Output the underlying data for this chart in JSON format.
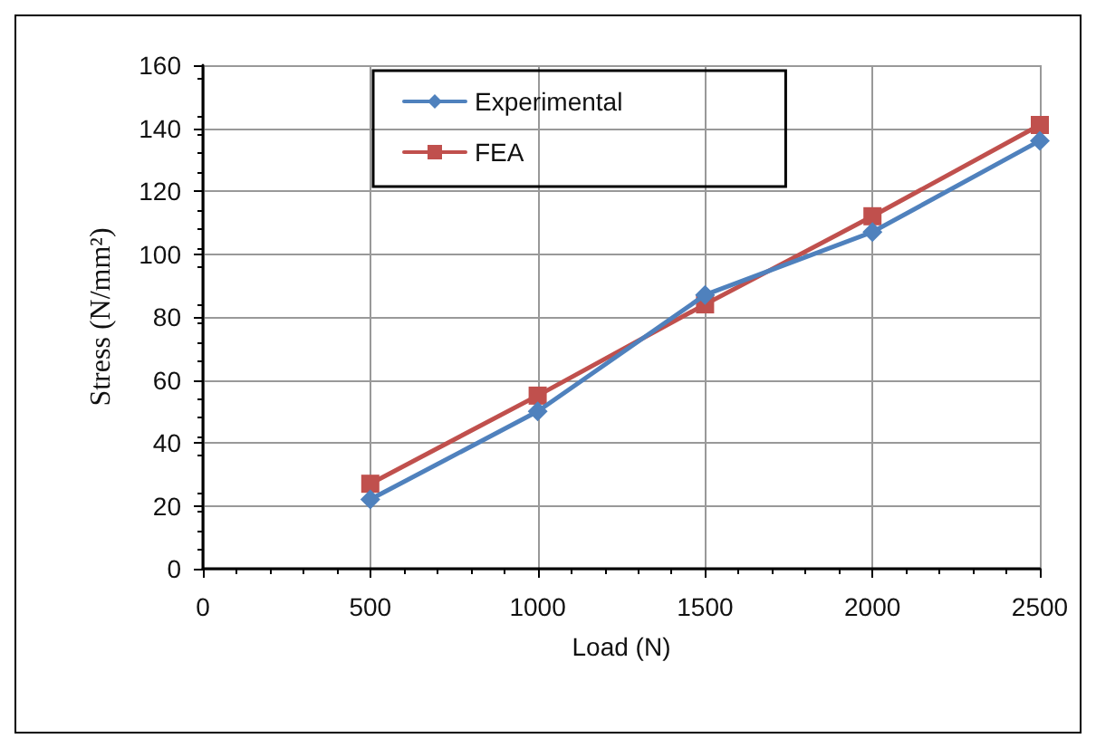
{
  "chart_data": {
    "type": "line",
    "xlabel": "Load (N)",
    "ylabel": "Stress (N/mm²)",
    "x": [
      500,
      1000,
      1500,
      2000,
      2500
    ],
    "series": [
      {
        "name": "Experimental",
        "color": "#4f81bd",
        "marker": "diamond",
        "values": [
          22,
          50,
          87,
          107,
          136
        ]
      },
      {
        "name": "FEA",
        "color": "#c0504d",
        "marker": "square",
        "values": [
          27,
          55,
          84,
          112,
          141
        ]
      }
    ],
    "xlim": [
      0,
      2500
    ],
    "xticks": [
      0,
      500,
      1000,
      1500,
      2000,
      2500
    ],
    "ylim": [
      0,
      160
    ],
    "yticks": [
      0,
      20,
      40,
      60,
      80,
      100,
      120,
      140,
      160
    ],
    "grid": true,
    "legend": "top left",
    "line_style": "solid"
  }
}
